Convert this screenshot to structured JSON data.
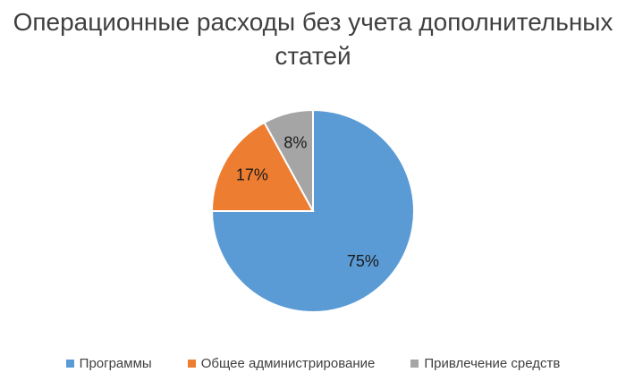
{
  "chart_data": {
    "type": "pie",
    "title": "Операционные расходы без учета дополнительных статей",
    "categories": [
      "Программы",
      "Общее администрирование",
      "Привлечение средств"
    ],
    "values": [
      75,
      17,
      8
    ],
    "value_labels": [
      "75%",
      "17%",
      "8%"
    ],
    "colors": [
      "#5B9BD5",
      "#ED7D31",
      "#A5A5A5"
    ],
    "legend": "bottom",
    "start_angle_deg": 0,
    "direction": "clockwise"
  }
}
